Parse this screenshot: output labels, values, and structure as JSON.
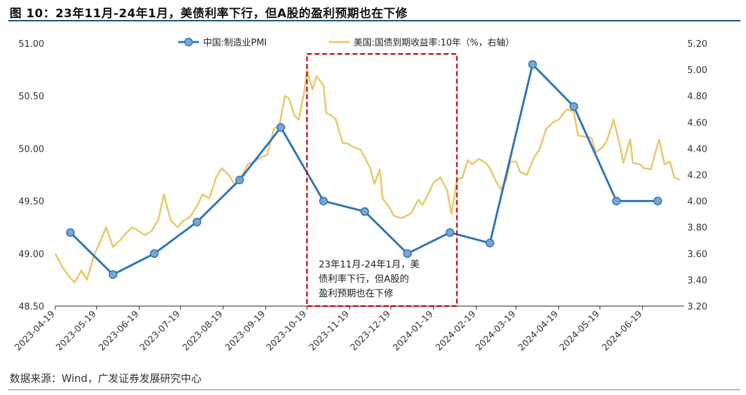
{
  "header": {
    "title": "图 10：23年11月-24年1月，美债利率下行，但A股的盈利预期也在下修"
  },
  "footer": {
    "source": "数据来源：Wind，广发证券发展研究中心"
  },
  "chart_data": {
    "type": "line",
    "title": "",
    "xlabel": "",
    "ylabel": "",
    "x_ticks": [
      "2023-04-19",
      "2023-05-19",
      "2023-06-19",
      "2023-07-19",
      "2023-08-19",
      "2023-09-19",
      "2023-10-19",
      "2023-11-19",
      "2023-12-19",
      "2024-01-19",
      "2024-02-19",
      "2024-03-19",
      "2024-04-19",
      "2024-05-19",
      "2024-06-19"
    ],
    "x_range": [
      "2023-04-19",
      "2024-07-19"
    ],
    "y_left": {
      "range": [
        48.5,
        51.0
      ],
      "ticks": [
        "48.50",
        "49.00",
        "49.50",
        "50.00",
        "50.50",
        "51.00"
      ]
    },
    "y_right": {
      "range": [
        3.2,
        5.2
      ],
      "ticks": [
        "3.20",
        "3.40",
        "3.60",
        "3.80",
        "4.00",
        "4.20",
        "4.40",
        "4.60",
        "4.80",
        "5.00",
        "5.20"
      ]
    },
    "grid": false,
    "legend_position": "top",
    "colors": {
      "pmi": "#2e75b6",
      "yield": "#e8c96a",
      "highlight": "#c00000"
    },
    "series": [
      {
        "name": "中国:制造业PMI",
        "axis": "left",
        "marker": "circle",
        "points": [
          {
            "x": "2023-04-30",
            "y": 49.2
          },
          {
            "x": "2023-05-31",
            "y": 48.8
          },
          {
            "x": "2023-06-30",
            "y": 49.0
          },
          {
            "x": "2023-07-31",
            "y": 49.3
          },
          {
            "x": "2023-08-31",
            "y": 49.7
          },
          {
            "x": "2023-09-30",
            "y": 50.2
          },
          {
            "x": "2023-10-31",
            "y": 49.5
          },
          {
            "x": "2023-11-30",
            "y": 49.4
          },
          {
            "x": "2023-12-31",
            "y": 49.0
          },
          {
            "x": "2024-01-31",
            "y": 49.2
          },
          {
            "x": "2024-02-29",
            "y": 49.1
          },
          {
            "x": "2024-03-31",
            "y": 50.8
          },
          {
            "x": "2024-04-30",
            "y": 50.4
          },
          {
            "x": "2024-05-31",
            "y": 49.5
          },
          {
            "x": "2024-06-30",
            "y": 49.5
          }
        ]
      },
      {
        "name": "美国:国债到期收益率:10年（%，右轴）",
        "axis": "right",
        "points": [
          {
            "x": "2023-04-19",
            "y": 3.6
          },
          {
            "x": "2023-04-24",
            "y": 3.5
          },
          {
            "x": "2023-04-28",
            "y": 3.44
          },
          {
            "x": "2023-05-03",
            "y": 3.38
          },
          {
            "x": "2023-05-08",
            "y": 3.47
          },
          {
            "x": "2023-05-12",
            "y": 3.4
          },
          {
            "x": "2023-05-17",
            "y": 3.58
          },
          {
            "x": "2023-05-22",
            "y": 3.7
          },
          {
            "x": "2023-05-26",
            "y": 3.8
          },
          {
            "x": "2023-05-31",
            "y": 3.65
          },
          {
            "x": "2023-06-05",
            "y": 3.7
          },
          {
            "x": "2023-06-09",
            "y": 3.75
          },
          {
            "x": "2023-06-14",
            "y": 3.8
          },
          {
            "x": "2023-06-19",
            "y": 3.77
          },
          {
            "x": "2023-06-23",
            "y": 3.74
          },
          {
            "x": "2023-06-28",
            "y": 3.77
          },
          {
            "x": "2023-07-03",
            "y": 3.86
          },
          {
            "x": "2023-07-07",
            "y": 4.05
          },
          {
            "x": "2023-07-12",
            "y": 3.85
          },
          {
            "x": "2023-07-17",
            "y": 3.8
          },
          {
            "x": "2023-07-21",
            "y": 3.85
          },
          {
            "x": "2023-07-26",
            "y": 3.88
          },
          {
            "x": "2023-07-31",
            "y": 3.96
          },
          {
            "x": "2023-08-04",
            "y": 4.05
          },
          {
            "x": "2023-08-09",
            "y": 4.02
          },
          {
            "x": "2023-08-14",
            "y": 4.18
          },
          {
            "x": "2023-08-18",
            "y": 4.25
          },
          {
            "x": "2023-08-23",
            "y": 4.2
          },
          {
            "x": "2023-08-28",
            "y": 4.12
          },
          {
            "x": "2023-09-01",
            "y": 4.18
          },
          {
            "x": "2023-09-06",
            "y": 4.28
          },
          {
            "x": "2023-09-11",
            "y": 4.3
          },
          {
            "x": "2023-09-15",
            "y": 4.33
          },
          {
            "x": "2023-09-20",
            "y": 4.35
          },
          {
            "x": "2023-09-25",
            "y": 4.55
          },
          {
            "x": "2023-09-29",
            "y": 4.58
          },
          {
            "x": "2023-10-03",
            "y": 4.8
          },
          {
            "x": "2023-10-06",
            "y": 4.78
          },
          {
            "x": "2023-10-10",
            "y": 4.65
          },
          {
            "x": "2023-10-13",
            "y": 4.62
          },
          {
            "x": "2023-10-17",
            "y": 4.83
          },
          {
            "x": "2023-10-19",
            "y": 4.99
          },
          {
            "x": "2023-10-23",
            "y": 4.85
          },
          {
            "x": "2023-10-26",
            "y": 4.95
          },
          {
            "x": "2023-10-31",
            "y": 4.88
          },
          {
            "x": "2023-11-02",
            "y": 4.67
          },
          {
            "x": "2023-11-06",
            "y": 4.65
          },
          {
            "x": "2023-11-09",
            "y": 4.62
          },
          {
            "x": "2023-11-14",
            "y": 4.44
          },
          {
            "x": "2023-11-17",
            "y": 4.44
          },
          {
            "x": "2023-11-22",
            "y": 4.41
          },
          {
            "x": "2023-11-27",
            "y": 4.39
          },
          {
            "x": "2023-11-30",
            "y": 4.33
          },
          {
            "x": "2023-12-04",
            "y": 4.25
          },
          {
            "x": "2023-12-07",
            "y": 4.13
          },
          {
            "x": "2023-12-11",
            "y": 4.24
          },
          {
            "x": "2023-12-13",
            "y": 4.02
          },
          {
            "x": "2023-12-18",
            "y": 3.95
          },
          {
            "x": "2023-12-21",
            "y": 3.89
          },
          {
            "x": "2023-12-26",
            "y": 3.87
          },
          {
            "x": "2023-12-29",
            "y": 3.88
          },
          {
            "x": "2024-01-03",
            "y": 3.91
          },
          {
            "x": "2024-01-08",
            "y": 4.01
          },
          {
            "x": "2024-01-11",
            "y": 3.97
          },
          {
            "x": "2024-01-16",
            "y": 4.07
          },
          {
            "x": "2024-01-19",
            "y": 4.14
          },
          {
            "x": "2024-01-24",
            "y": 4.18
          },
          {
            "x": "2024-01-29",
            "y": 4.08
          },
          {
            "x": "2024-02-01",
            "y": 3.9
          },
          {
            "x": "2024-02-05",
            "y": 4.16
          },
          {
            "x": "2024-02-09",
            "y": 4.18
          },
          {
            "x": "2024-02-13",
            "y": 4.31
          },
          {
            "x": "2024-02-16",
            "y": 4.28
          },
          {
            "x": "2024-02-21",
            "y": 4.32
          },
          {
            "x": "2024-02-26",
            "y": 4.29
          },
          {
            "x": "2024-02-29",
            "y": 4.25
          },
          {
            "x": "2024-03-05",
            "y": 4.14
          },
          {
            "x": "2024-03-08",
            "y": 4.09
          },
          {
            "x": "2024-03-12",
            "y": 4.16
          },
          {
            "x": "2024-03-15",
            "y": 4.3
          },
          {
            "x": "2024-03-19",
            "y": 4.3
          },
          {
            "x": "2024-03-22",
            "y": 4.22
          },
          {
            "x": "2024-03-27",
            "y": 4.2
          },
          {
            "x": "2024-04-01",
            "y": 4.33
          },
          {
            "x": "2024-04-05",
            "y": 4.39
          },
          {
            "x": "2024-04-10",
            "y": 4.55
          },
          {
            "x": "2024-04-15",
            "y": 4.6
          },
          {
            "x": "2024-04-19",
            "y": 4.62
          },
          {
            "x": "2024-04-25",
            "y": 4.7
          },
          {
            "x": "2024-04-30",
            "y": 4.68
          },
          {
            "x": "2024-05-03",
            "y": 4.5
          },
          {
            "x": "2024-05-08",
            "y": 4.49
          },
          {
            "x": "2024-05-13",
            "y": 4.48
          },
          {
            "x": "2024-05-16",
            "y": 4.37
          },
          {
            "x": "2024-05-21",
            "y": 4.41
          },
          {
            "x": "2024-05-24",
            "y": 4.46
          },
          {
            "x": "2024-05-29",
            "y": 4.62
          },
          {
            "x": "2024-06-03",
            "y": 4.4
          },
          {
            "x": "2024-06-05",
            "y": 4.29
          },
          {
            "x": "2024-06-10",
            "y": 4.47
          },
          {
            "x": "2024-06-12",
            "y": 4.29
          },
          {
            "x": "2024-06-17",
            "y": 4.28
          },
          {
            "x": "2024-06-20",
            "y": 4.25
          },
          {
            "x": "2024-06-25",
            "y": 4.24
          },
          {
            "x": "2024-06-28",
            "y": 4.36
          },
          {
            "x": "2024-07-01",
            "y": 4.47
          },
          {
            "x": "2024-07-05",
            "y": 4.28
          },
          {
            "x": "2024-07-09",
            "y": 4.3
          },
          {
            "x": "2024-07-12",
            "y": 4.18
          },
          {
            "x": "2024-07-16",
            "y": 4.16
          }
        ]
      }
    ],
    "annotations": [
      {
        "type": "rect",
        "x_start": "2023-10-19",
        "x_end": "2024-02-05",
        "y_top": 50.9,
        "y_bottom": 48.5,
        "text": "23年11月-24年1月，美债利率下行，但A股的盈利预期也在下修",
        "text_lines": [
          "23年11月-24年1月，美",
          "债利率下行，但A股的",
          "盈利预期也在下修"
        ]
      }
    ]
  }
}
